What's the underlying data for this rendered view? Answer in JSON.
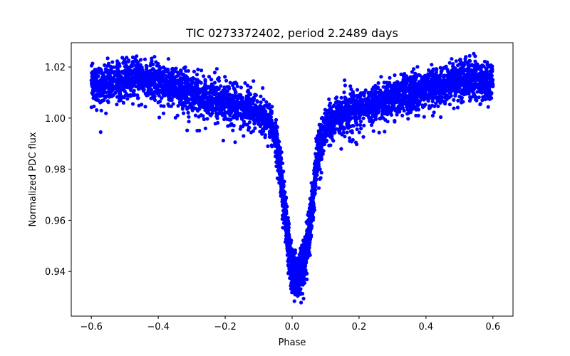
{
  "chart_data": {
    "type": "scatter",
    "title": "TIC 0273372402, period 2.2489 days",
    "xlabel": "Phase",
    "ylabel": "Normalized PDC flux",
    "xlim": [
      -0.66,
      0.66
    ],
    "ylim": [
      0.9225,
      1.0295
    ],
    "xticks": [
      -0.6,
      -0.4,
      -0.2,
      0.0,
      0.2,
      0.4,
      0.6
    ],
    "xtick_labels": [
      "−0.6",
      "−0.4",
      "−0.2",
      "0.0",
      "0.2",
      "0.4",
      "0.6"
    ],
    "yticks": [
      0.94,
      0.96,
      0.98,
      1.0,
      1.02
    ],
    "ytick_labels": [
      "0.94",
      "0.96",
      "0.98",
      "1.00",
      "1.02"
    ],
    "grid": false,
    "marker_color": "#0000ff",
    "series": [
      {
        "name": "PDC flux",
        "description": "dense phase-folded light curve, roughly 8000 points",
        "points": [
          [
            -0.6,
            1.012
          ],
          [
            -0.55,
            1.014
          ],
          [
            -0.5,
            1.016
          ],
          [
            -0.47,
            1.016
          ],
          [
            -0.4,
            1.014
          ],
          [
            -0.3,
            1.01
          ],
          [
            -0.2,
            1.006
          ],
          [
            -0.1,
            1.002
          ],
          [
            -0.06,
            0.998
          ],
          [
            -0.045,
            0.99
          ],
          [
            -0.03,
            0.975
          ],
          [
            -0.02,
            0.962
          ],
          [
            -0.01,
            0.95
          ],
          [
            0.0,
            0.94
          ],
          [
            0.02,
            0.938
          ],
          [
            0.04,
            0.945
          ],
          [
            0.055,
            0.96
          ],
          [
            0.065,
            0.972
          ],
          [
            0.075,
            0.985
          ],
          [
            0.09,
            0.993
          ],
          [
            0.11,
            0.999
          ],
          [
            0.2,
            1.004
          ],
          [
            0.3,
            1.008
          ],
          [
            0.4,
            1.012
          ],
          [
            0.5,
            1.015
          ],
          [
            0.53,
            1.016
          ],
          [
            0.6,
            1.014
          ]
        ]
      }
    ]
  }
}
